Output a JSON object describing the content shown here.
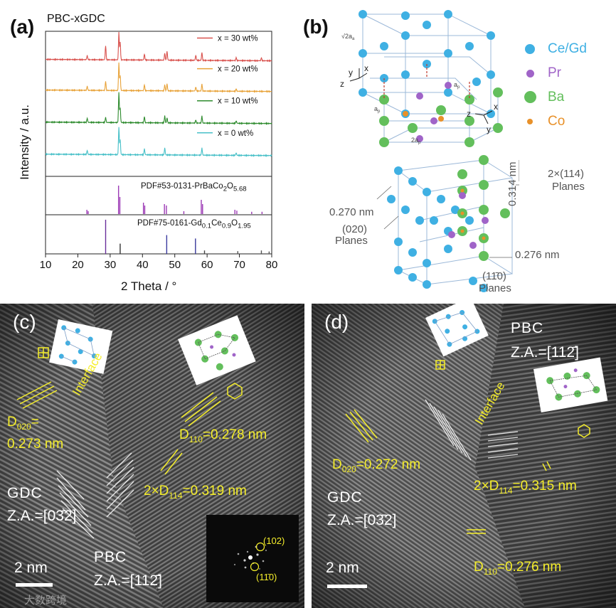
{
  "figure": {
    "panels": {
      "a": "(a)",
      "b": "(b)",
      "c": "(c)",
      "d": "(d)"
    },
    "panel_a": {
      "sample_title": "PBC-xGDC",
      "ref_pbc": "PDF#53-0131-PrBaCo",
      "ref_pbc_sub1": "2",
      "ref_pbc_mid": "O",
      "ref_pbc_sub2": "5.68",
      "ref_gdc": "PDF#75-0161-Gd",
      "ref_gdc_sub1": "0.1",
      "ref_gdc_mid": "Ce",
      "ref_gdc_sub2": "0.9",
      "ref_gdc_end": "O",
      "ref_gdc_sub3": "1.95"
    },
    "panel_b": {
      "legend": [
        {
          "label": "Ce/Gd",
          "color": "#3fb0e3"
        },
        {
          "label": "Pr",
          "color": "#a064c8"
        },
        {
          "label": "Ba",
          "color": "#63bf5c"
        },
        {
          "label": "Co",
          "color": "#e8912a"
        }
      ],
      "lattice_a": "√2a",
      "lattice_a_sub": "a",
      "lattice_ap": "a",
      "lattice_ap_sub": "p",
      "lattice_2ap": "2a",
      "lattice_2ap_sub": "p",
      "axis_x": "x",
      "axis_y": "y",
      "axis_z": "z",
      "d_020": "0.270 nm",
      "planes_020_a": "(020)",
      "planes_020_b": "Planes",
      "d_114": "0.314 nm",
      "planes_114_a": "2×(114)",
      "planes_114_b": "Planes",
      "d_110": "0.276 nm",
      "planes_110_a": "(11̄0)",
      "planes_110_b": "Planes"
    },
    "panel_c": {
      "d020_a": "D",
      "d020_sub": "020",
      "d020_eq": "=",
      "d020_val": "0.273 nm",
      "interface": "Interface",
      "d110": "D",
      "d110_sub": "110",
      "d110_val": "=0.278 nm",
      "d114": "2×D",
      "d114_sub": "114",
      "d114_val": "=0.319 nm",
      "gdc": "GDC",
      "gdc_za": "Z.A.=[03̄2]",
      "pbc": "PBC",
      "pbc_za": "Z.A.=[112̄]",
      "scale": "2 nm",
      "fft_102": "(102)",
      "fft_110": "(11̄0)",
      "watermark": "大数跨境"
    },
    "panel_d": {
      "pbc": "PBC",
      "pbc_za": "Z.A.=[112̄]",
      "interface": "Interface",
      "d020": "D",
      "d020_sub": "020",
      "d020_val": "=0.272 nm",
      "d114": "2×D",
      "d114_sub": "114",
      "d114_val": "=0.315 nm",
      "gdc": "GDC",
      "gdc_za": "Z.A.=[03̄2]",
      "d110": "D",
      "d110_sub": "110",
      "d110_val": "=0.276 nm",
      "scale": "2 nm"
    }
  },
  "chart_data": {
    "type": "line",
    "title": "PBC-xGDC",
    "xlabel": "2 Theta / °",
    "ylabel": "Intensity / a.u.",
    "xlim": [
      10,
      80
    ],
    "x_ticks": [
      "10",
      "20",
      "30",
      "40",
      "50",
      "60",
      "70",
      "80"
    ],
    "series": [
      {
        "name": "x = 30 wt%",
        "color": "#d9534f",
        "baseline": 0.88,
        "peaks": [
          [
            22.9,
            0.08
          ],
          [
            28.6,
            0.28
          ],
          [
            32.7,
            0.55
          ],
          [
            33.1,
            0.35
          ],
          [
            40.6,
            0.12
          ],
          [
            46.9,
            0.14
          ],
          [
            47.6,
            0.18
          ],
          [
            56.5,
            0.1
          ],
          [
            58.4,
            0.16
          ],
          [
            69.0,
            0.06
          ],
          [
            76.8,
            0.06
          ]
        ]
      },
      {
        "name": "x = 20 wt%",
        "color": "#e8a33a",
        "baseline": 0.66,
        "peaks": [
          [
            22.9,
            0.08
          ],
          [
            28.6,
            0.18
          ],
          [
            32.7,
            0.55
          ],
          [
            33.1,
            0.3
          ],
          [
            40.6,
            0.12
          ],
          [
            46.9,
            0.12
          ],
          [
            47.6,
            0.14
          ],
          [
            56.5,
            0.08
          ],
          [
            58.4,
            0.14
          ],
          [
            69.0,
            0.05
          ]
        ]
      },
      {
        "name": "x = 10 wt%",
        "color": "#2e8b2e",
        "baseline": 0.43,
        "peaks": [
          [
            22.9,
            0.08
          ],
          [
            28.6,
            0.1
          ],
          [
            32.7,
            0.6
          ],
          [
            33.1,
            0.3
          ],
          [
            40.6,
            0.12
          ],
          [
            46.9,
            0.14
          ],
          [
            47.6,
            0.1
          ],
          [
            56.5,
            0.06
          ],
          [
            58.4,
            0.14
          ],
          [
            69.0,
            0.05
          ]
        ]
      },
      {
        "name": "x = 0 wt%",
        "color": "#48c0c8",
        "baseline": 0.2,
        "peaks": [
          [
            22.9,
            0.08
          ],
          [
            32.7,
            0.55
          ],
          [
            33.1,
            0.3
          ],
          [
            40.6,
            0.12
          ],
          [
            46.9,
            0.14
          ],
          [
            58.4,
            0.14
          ],
          [
            69.0,
            0.05
          ]
        ]
      }
    ],
    "reference_pbc": {
      "color": "#9c3ab5",
      "lines": [
        [
          22.8,
          0.15
        ],
        [
          23.2,
          0.1
        ],
        [
          32.6,
          1.0
        ],
        [
          33.0,
          0.6
        ],
        [
          40.3,
          0.4
        ],
        [
          40.7,
          0.3
        ],
        [
          46.8,
          0.35
        ],
        [
          47.4,
          0.3
        ],
        [
          52.8,
          0.1
        ],
        [
          58.2,
          0.5
        ],
        [
          58.6,
          0.35
        ],
        [
          68.6,
          0.15
        ],
        [
          69.2,
          0.12
        ],
        [
          73.8,
          0.08
        ],
        [
          77.0,
          0.08
        ]
      ]
    },
    "reference_gdc": {
      "lines": [
        [
          28.6,
          1.0,
          "#6a2f9c"
        ],
        [
          33.1,
          0.3,
          "#333333"
        ],
        [
          47.5,
          0.55,
          "#3a3aa0"
        ],
        [
          56.4,
          0.45,
          "#3a3a9c"
        ],
        [
          59.2,
          0.1,
          "#444444"
        ],
        [
          69.5,
          0.08,
          "#555555"
        ],
        [
          76.8,
          0.1,
          "#555555"
        ],
        [
          79.2,
          0.07,
          "#555555"
        ]
      ]
    }
  }
}
